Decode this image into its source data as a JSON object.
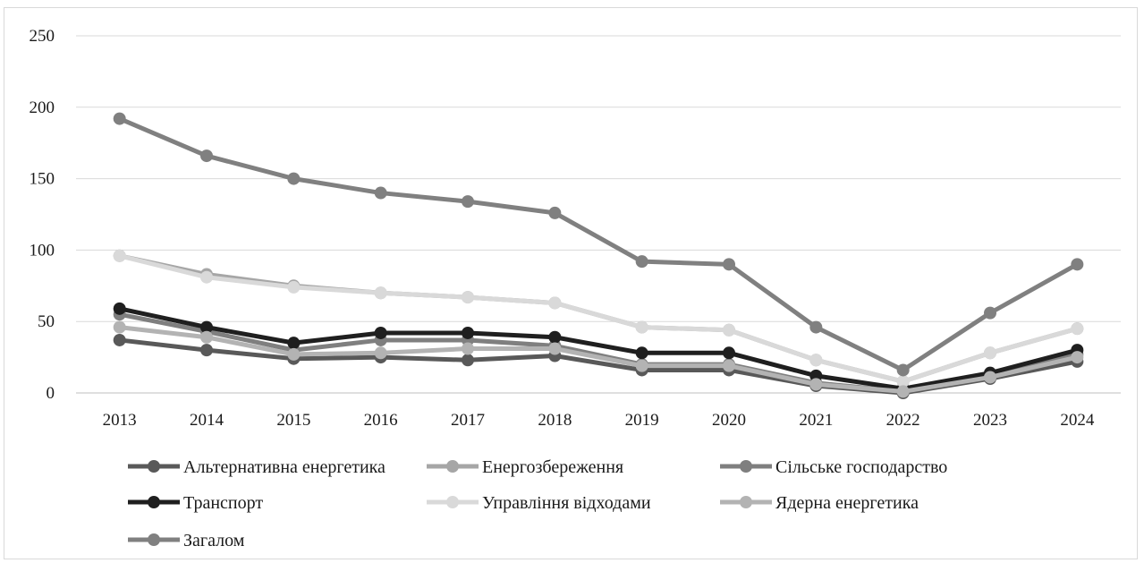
{
  "chart_data": {
    "type": "line",
    "title": "",
    "xlabel": "",
    "ylabel": "",
    "categories": [
      "2013",
      "2014",
      "2015",
      "2016",
      "2017",
      "2018",
      "2019",
      "2020",
      "2021",
      "2022",
      "2023",
      "2024"
    ],
    "ylim": [
      0,
      250
    ],
    "yticks": [
      0,
      50,
      100,
      150,
      200,
      250
    ],
    "grid": "horizontal",
    "legend_position": "bottom",
    "series": [
      {
        "name": "Альтернативна енергетика",
        "color": "#595959",
        "values": [
          37,
          30,
          24,
          25,
          23,
          26,
          16,
          16,
          5,
          0,
          10,
          22
        ]
      },
      {
        "name": "Енергозбереження",
        "color": "#a6a6a6",
        "values": [
          96,
          83,
          75,
          70,
          67,
          63,
          46,
          44,
          23,
          8,
          28,
          45
        ]
      },
      {
        "name": "Сільське господарство",
        "color": "#7f7f7f",
        "values": [
          55,
          43,
          30,
          37,
          37,
          33,
          20,
          20,
          7,
          1,
          12,
          27
        ]
      },
      {
        "name": "Транспорт",
        "color": "#1f1f1f",
        "values": [
          59,
          46,
          35,
          42,
          42,
          39,
          28,
          28,
          12,
          3,
          14,
          30
        ]
      },
      {
        "name": "Управління відходами",
        "color": "#d9d9d9",
        "values": [
          96,
          81,
          74,
          70,
          67,
          63,
          46,
          44,
          23,
          8,
          28,
          45
        ]
      },
      {
        "name": "Ядерна енергетика",
        "color": "#b3b3b3",
        "values": [
          46,
          39,
          27,
          28,
          31,
          31,
          19,
          19,
          6,
          1,
          11,
          25
        ]
      },
      {
        "name": "Загалом",
        "color": "#808080",
        "values": [
          192,
          166,
          150,
          140,
          134,
          126,
          92,
          90,
          46,
          16,
          56,
          90
        ]
      }
    ]
  }
}
